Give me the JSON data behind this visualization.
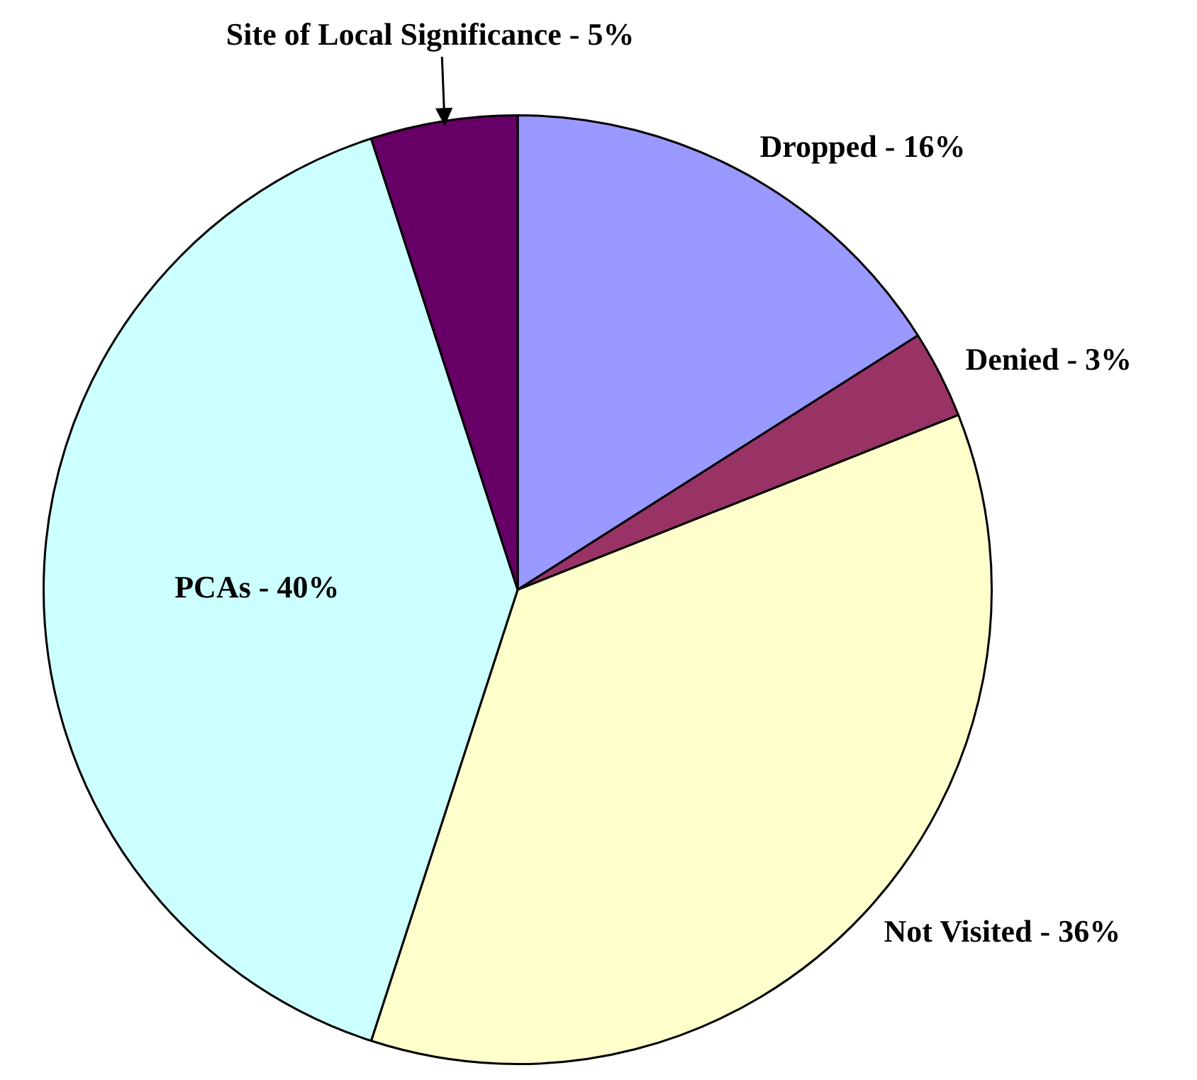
{
  "chart_data": {
    "type": "pie",
    "categories": [
      "Dropped - 16%",
      "Denied - 3%",
      "Not Visited - 36%",
      "PCAs - 40%",
      "Site of Local Significance - 5%"
    ],
    "values": [
      16,
      3,
      36,
      40,
      5
    ],
    "colors": [
      "#9999ff",
      "#993366",
      "#ffffcc",
      "#ccffff",
      "#660066"
    ],
    "legend": false
  }
}
